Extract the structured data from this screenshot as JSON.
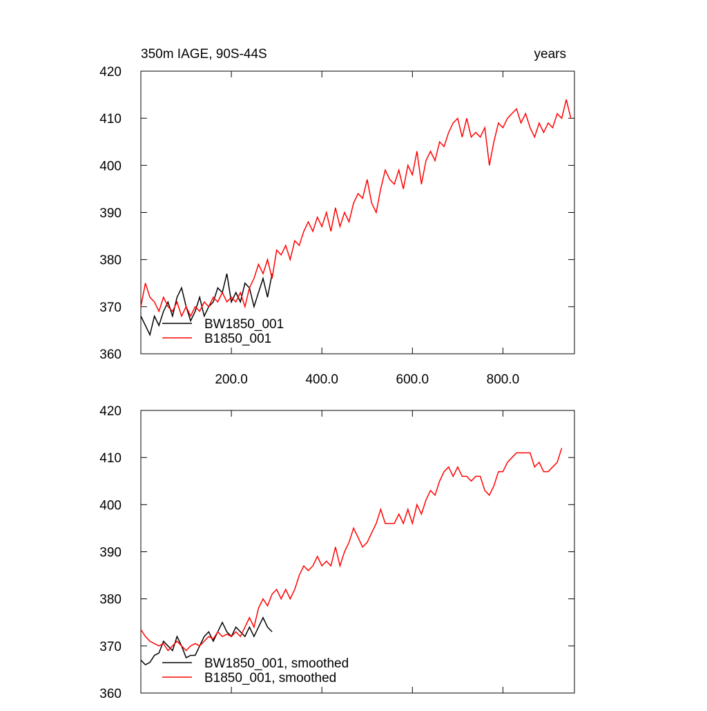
{
  "chart_data": [
    {
      "type": "line",
      "title": "350m IAGE, 90S-44S",
      "right_title": "years",
      "xlim": [
        0,
        958
      ],
      "ylim": [
        360,
        420
      ],
      "xticks": [
        {
          "value": 200,
          "label": "200.0"
        },
        {
          "value": 400,
          "label": "400.0"
        },
        {
          "value": 600,
          "label": "600.0"
        },
        {
          "value": 800,
          "label": "800.0"
        }
      ],
      "yticks": [
        360,
        370,
        380,
        390,
        400,
        410,
        420
      ],
      "show_xtick_labels": true,
      "legend": "lower left",
      "series": [
        {
          "name": "BW1850_001",
          "color": "#000000",
          "x": [
            0,
            10,
            20,
            30,
            40,
            50,
            60,
            70,
            80,
            90,
            100,
            110,
            120,
            130,
            140,
            150,
            160,
            170,
            180,
            190,
            200,
            210,
            220,
            230,
            240,
            250,
            260,
            270,
            280,
            290
          ],
          "values": [
            368,
            366,
            364,
            368,
            366,
            369,
            371,
            368,
            372,
            374,
            370,
            367,
            369,
            372,
            368,
            370,
            371,
            374,
            373,
            377,
            371,
            373,
            371,
            375,
            374,
            370,
            373,
            376,
            372,
            377
          ]
        },
        {
          "name": "B1850_001",
          "color": "#ff0000",
          "x": [
            0,
            10,
            20,
            30,
            40,
            50,
            60,
            70,
            80,
            90,
            100,
            110,
            120,
            130,
            140,
            150,
            160,
            170,
            180,
            190,
            200,
            210,
            220,
            230,
            240,
            250,
            260,
            270,
            280,
            290,
            300,
            310,
            320,
            330,
            340,
            350,
            360,
            370,
            380,
            390,
            400,
            410,
            420,
            430,
            440,
            450,
            460,
            470,
            480,
            490,
            500,
            510,
            520,
            530,
            540,
            550,
            560,
            570,
            580,
            590,
            600,
            610,
            620,
            630,
            640,
            650,
            660,
            670,
            680,
            690,
            700,
            710,
            720,
            730,
            740,
            750,
            760,
            770,
            780,
            790,
            800,
            810,
            820,
            830,
            840,
            850,
            860,
            870,
            880,
            890,
            900,
            910,
            920,
            930,
            940,
            950
          ],
          "values": [
            370,
            375,
            372,
            371,
            369,
            372,
            370,
            369,
            371,
            368,
            370,
            368,
            370,
            369,
            371,
            370,
            372,
            371,
            373,
            371,
            372,
            371,
            373,
            370,
            374,
            376,
            379,
            377,
            380,
            376,
            382,
            381,
            383,
            380,
            384,
            383,
            386,
            388,
            386,
            389,
            387,
            390,
            386,
            391,
            387,
            390,
            388,
            392,
            394,
            393,
            397,
            392,
            390,
            395,
            399,
            397,
            396,
            399,
            395,
            400,
            398,
            403,
            396,
            401,
            403,
            401,
            405,
            404,
            407,
            409,
            410,
            406,
            410,
            406,
            407,
            406,
            408,
            400,
            405,
            409,
            408,
            410,
            411,
            412,
            409,
            411,
            408,
            406,
            409,
            407,
            409,
            408,
            411,
            410,
            414,
            410
          ]
        }
      ]
    },
    {
      "type": "line",
      "xlim": [
        0,
        958
      ],
      "ylim": [
        360,
        420
      ],
      "xticks": [
        200,
        400,
        600,
        800
      ],
      "yticks": [
        360,
        370,
        380,
        390,
        400,
        410,
        420
      ],
      "show_xtick_labels": false,
      "legend": "lower left",
      "series": [
        {
          "name": "BW1850_001, smoothed",
          "color": "#000000",
          "x": [
            0,
            10,
            20,
            30,
            40,
            50,
            60,
            70,
            80,
            90,
            100,
            110,
            120,
            130,
            140,
            150,
            160,
            170,
            180,
            190,
            200,
            210,
            220,
            230,
            240,
            250,
            260,
            270,
            280,
            290
          ],
          "values": [
            367,
            366,
            366.5,
            368,
            368.5,
            371,
            370,
            369,
            372,
            370,
            367.5,
            368,
            368,
            370,
            372,
            373,
            371,
            373,
            375,
            373,
            372,
            374,
            373,
            372,
            374,
            372,
            374,
            376,
            374,
            373
          ]
        },
        {
          "name": "B1850_001, smoothed",
          "color": "#ff0000",
          "x": [
            0,
            10,
            20,
            30,
            40,
            50,
            60,
            70,
            80,
            90,
            100,
            110,
            120,
            130,
            140,
            150,
            160,
            170,
            180,
            190,
            200,
            210,
            220,
            230,
            240,
            250,
            260,
            270,
            280,
            290,
            300,
            310,
            320,
            330,
            340,
            350,
            360,
            370,
            380,
            390,
            400,
            410,
            420,
            430,
            440,
            450,
            460,
            470,
            480,
            490,
            500,
            510,
            520,
            530,
            540,
            550,
            560,
            570,
            580,
            590,
            600,
            610,
            620,
            630,
            640,
            650,
            660,
            670,
            680,
            690,
            700,
            710,
            720,
            730,
            740,
            750,
            760,
            770,
            780,
            790,
            800,
            810,
            820,
            830,
            840,
            850,
            860,
            870,
            880,
            890,
            900,
            910,
            920,
            930
          ],
          "values": [
            373.5,
            372,
            371,
            370.5,
            370,
            370.5,
            369,
            370,
            371,
            370,
            369,
            370,
            370.5,
            370,
            371,
            372,
            371.5,
            373,
            372,
            372.5,
            372,
            373,
            372,
            374,
            376,
            374,
            378,
            380,
            378.5,
            381,
            382,
            380,
            382,
            380,
            382,
            385,
            387,
            386,
            387,
            389,
            387,
            388,
            387,
            391,
            387,
            390,
            392,
            395,
            393,
            391,
            392,
            394,
            396,
            399,
            396,
            396,
            396,
            398,
            396,
            399,
            396,
            400,
            398,
            401,
            403,
            402,
            405,
            407,
            408,
            406,
            408,
            406,
            406,
            405,
            406,
            406,
            403,
            402,
            404,
            407,
            407,
            409,
            410,
            411,
            411,
            411,
            411,
            408,
            409,
            407,
            407,
            408,
            409,
            412
          ]
        }
      ]
    }
  ]
}
